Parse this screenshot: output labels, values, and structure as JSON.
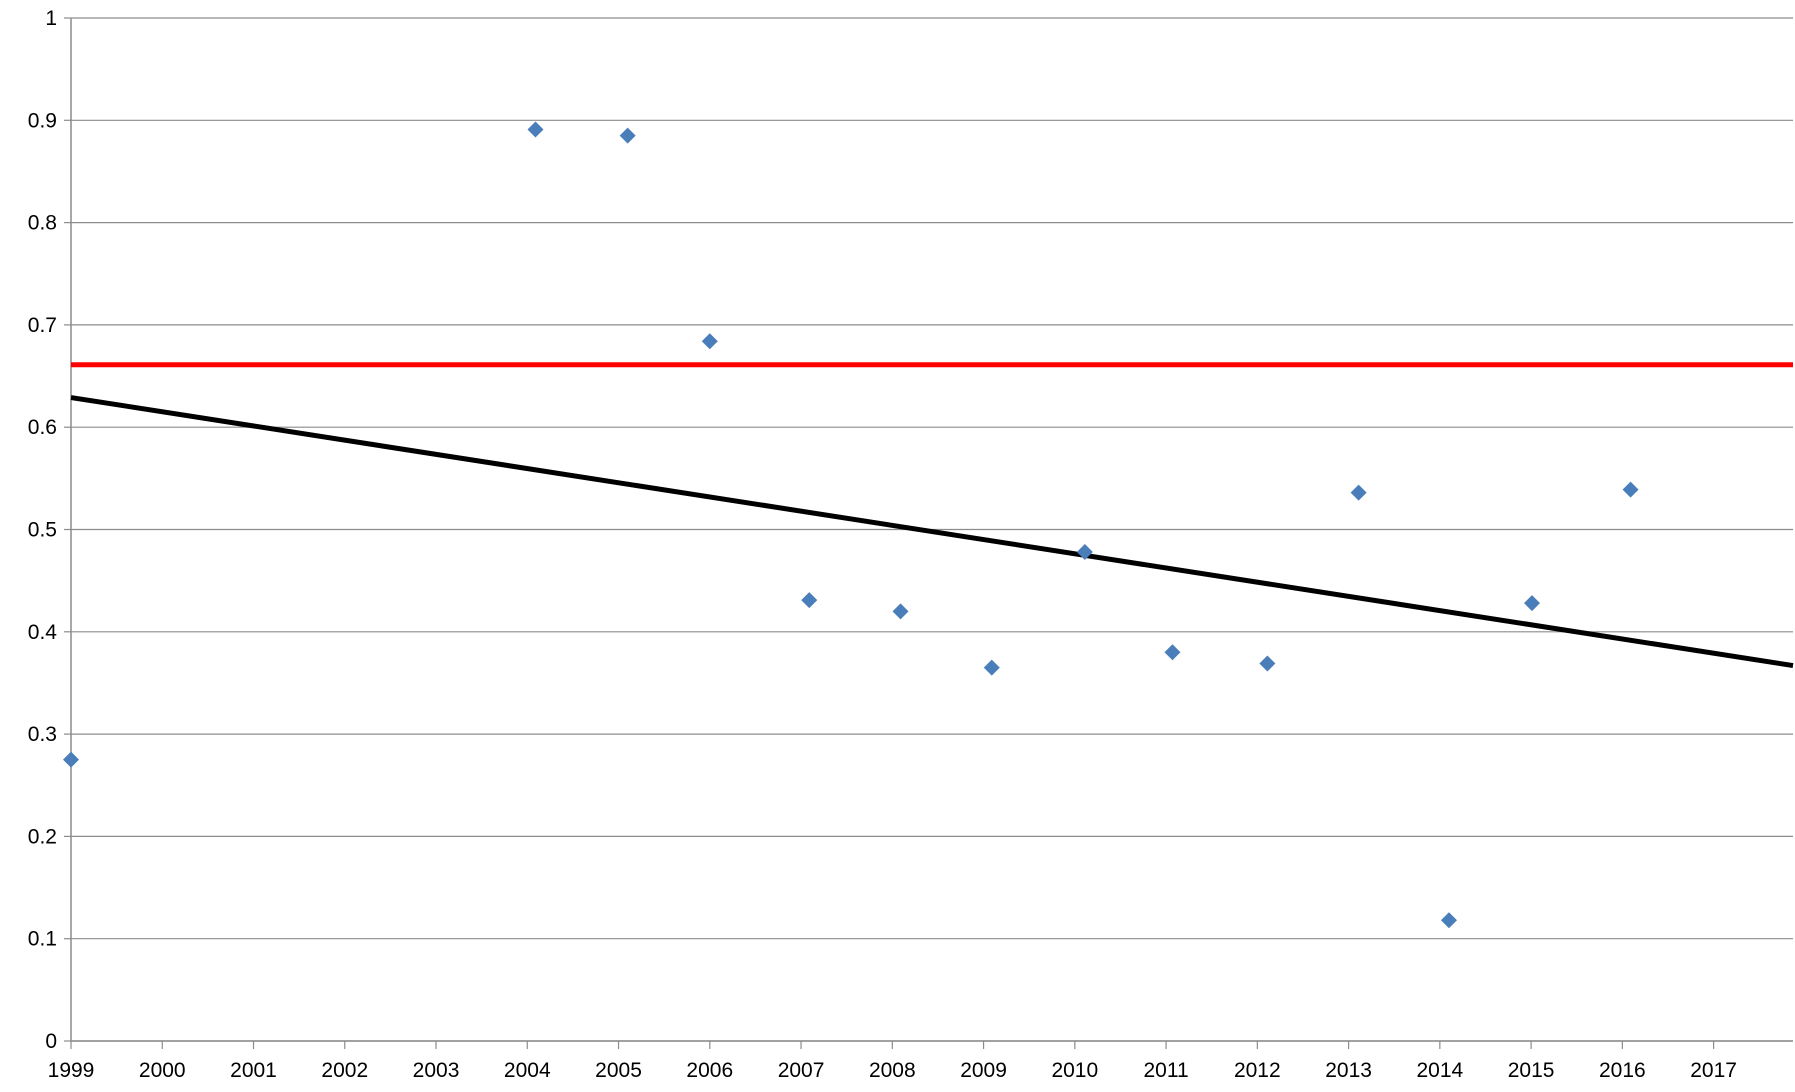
{
  "chart_data": {
    "type": "scatter",
    "xlim": [
      1999,
      2017.87
    ],
    "xticks": [
      1999,
      2000,
      2001,
      2002,
      2003,
      2004,
      2005,
      2006,
      2007,
      2008,
      2009,
      2010,
      2011,
      2012,
      2013,
      2014,
      2015,
      2016,
      2017
    ],
    "ylim": [
      0,
      1
    ],
    "yticks": [
      0,
      0.1,
      0.2,
      0.3,
      0.4,
      0.5,
      0.6,
      0.7,
      0.8,
      0.9,
      1
    ],
    "grid": true,
    "series": [
      {
        "type": "scatter",
        "marker": "diamond",
        "color": "#4a7ebb",
        "x": [
          1999.0,
          2004.09,
          2005.1,
          2006.0,
          2007.09,
          2008.09,
          2009.09,
          2010.11,
          2011.07,
          2012.11,
          2013.11,
          2014.1,
          2015.01,
          2016.09
        ],
        "values": [
          0.275,
          0.891,
          0.885,
          0.684,
          0.431,
          0.42,
          0.365,
          0.478,
          0.38,
          0.369,
          0.536,
          0.118,
          0.428,
          0.539
        ]
      },
      {
        "type": "line",
        "color": "#ff0000",
        "x": [
          1999,
          2017.87
        ],
        "values": [
          0.661,
          0.661
        ]
      },
      {
        "type": "line",
        "color": "#000000",
        "x": [
          1999,
          2017.87
        ],
        "values": [
          0.629,
          0.367
        ]
      }
    ]
  }
}
